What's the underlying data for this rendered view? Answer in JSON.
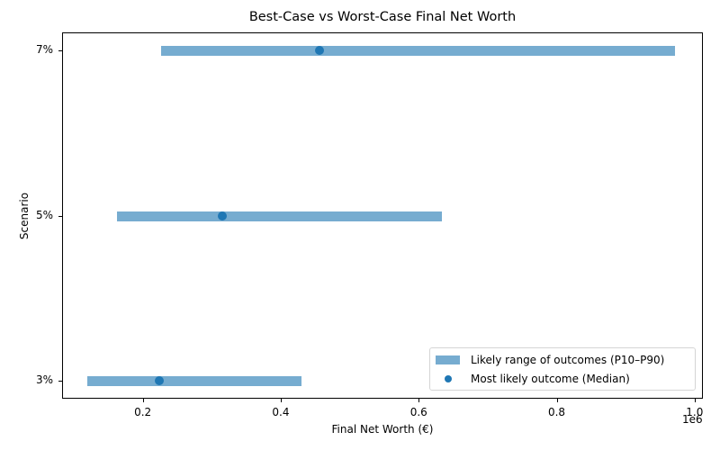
{
  "chart_data": {
    "type": "range-dot",
    "title": "Best-Case vs Worst-Case Final Net Worth",
    "xlabel": "Final Net Worth (€)",
    "ylabel": "Scenario",
    "x_offset_label": "1e6",
    "xlim": [
      0.083,
      1.012
    ],
    "x_scale": 1000000,
    "x_ticks": [
      0.2,
      0.4,
      0.6,
      0.8,
      1.0
    ],
    "x_tick_labels": [
      "0.2",
      "0.4",
      "0.6",
      "0.8",
      "1.0"
    ],
    "categories": [
      "3%",
      "5%",
      "7%"
    ],
    "series": [
      {
        "name": "Likely range of outcomes (P10–P90)",
        "type": "range",
        "low": [
          120000,
          162000,
          227000
        ],
        "high": [
          430000,
          634000,
          971000
        ],
        "color": "#76acd0"
      },
      {
        "name": "Most likely outcome (Median)",
        "type": "scatter",
        "values": [
          224000,
          315000,
          456000
        ],
        "color": "#1f77b4"
      }
    ],
    "legend_position": "lower right",
    "grid": false
  },
  "legend": {
    "range_label": "Likely range of outcomes (P10–P90)",
    "median_label": "Most likely outcome (Median)"
  }
}
